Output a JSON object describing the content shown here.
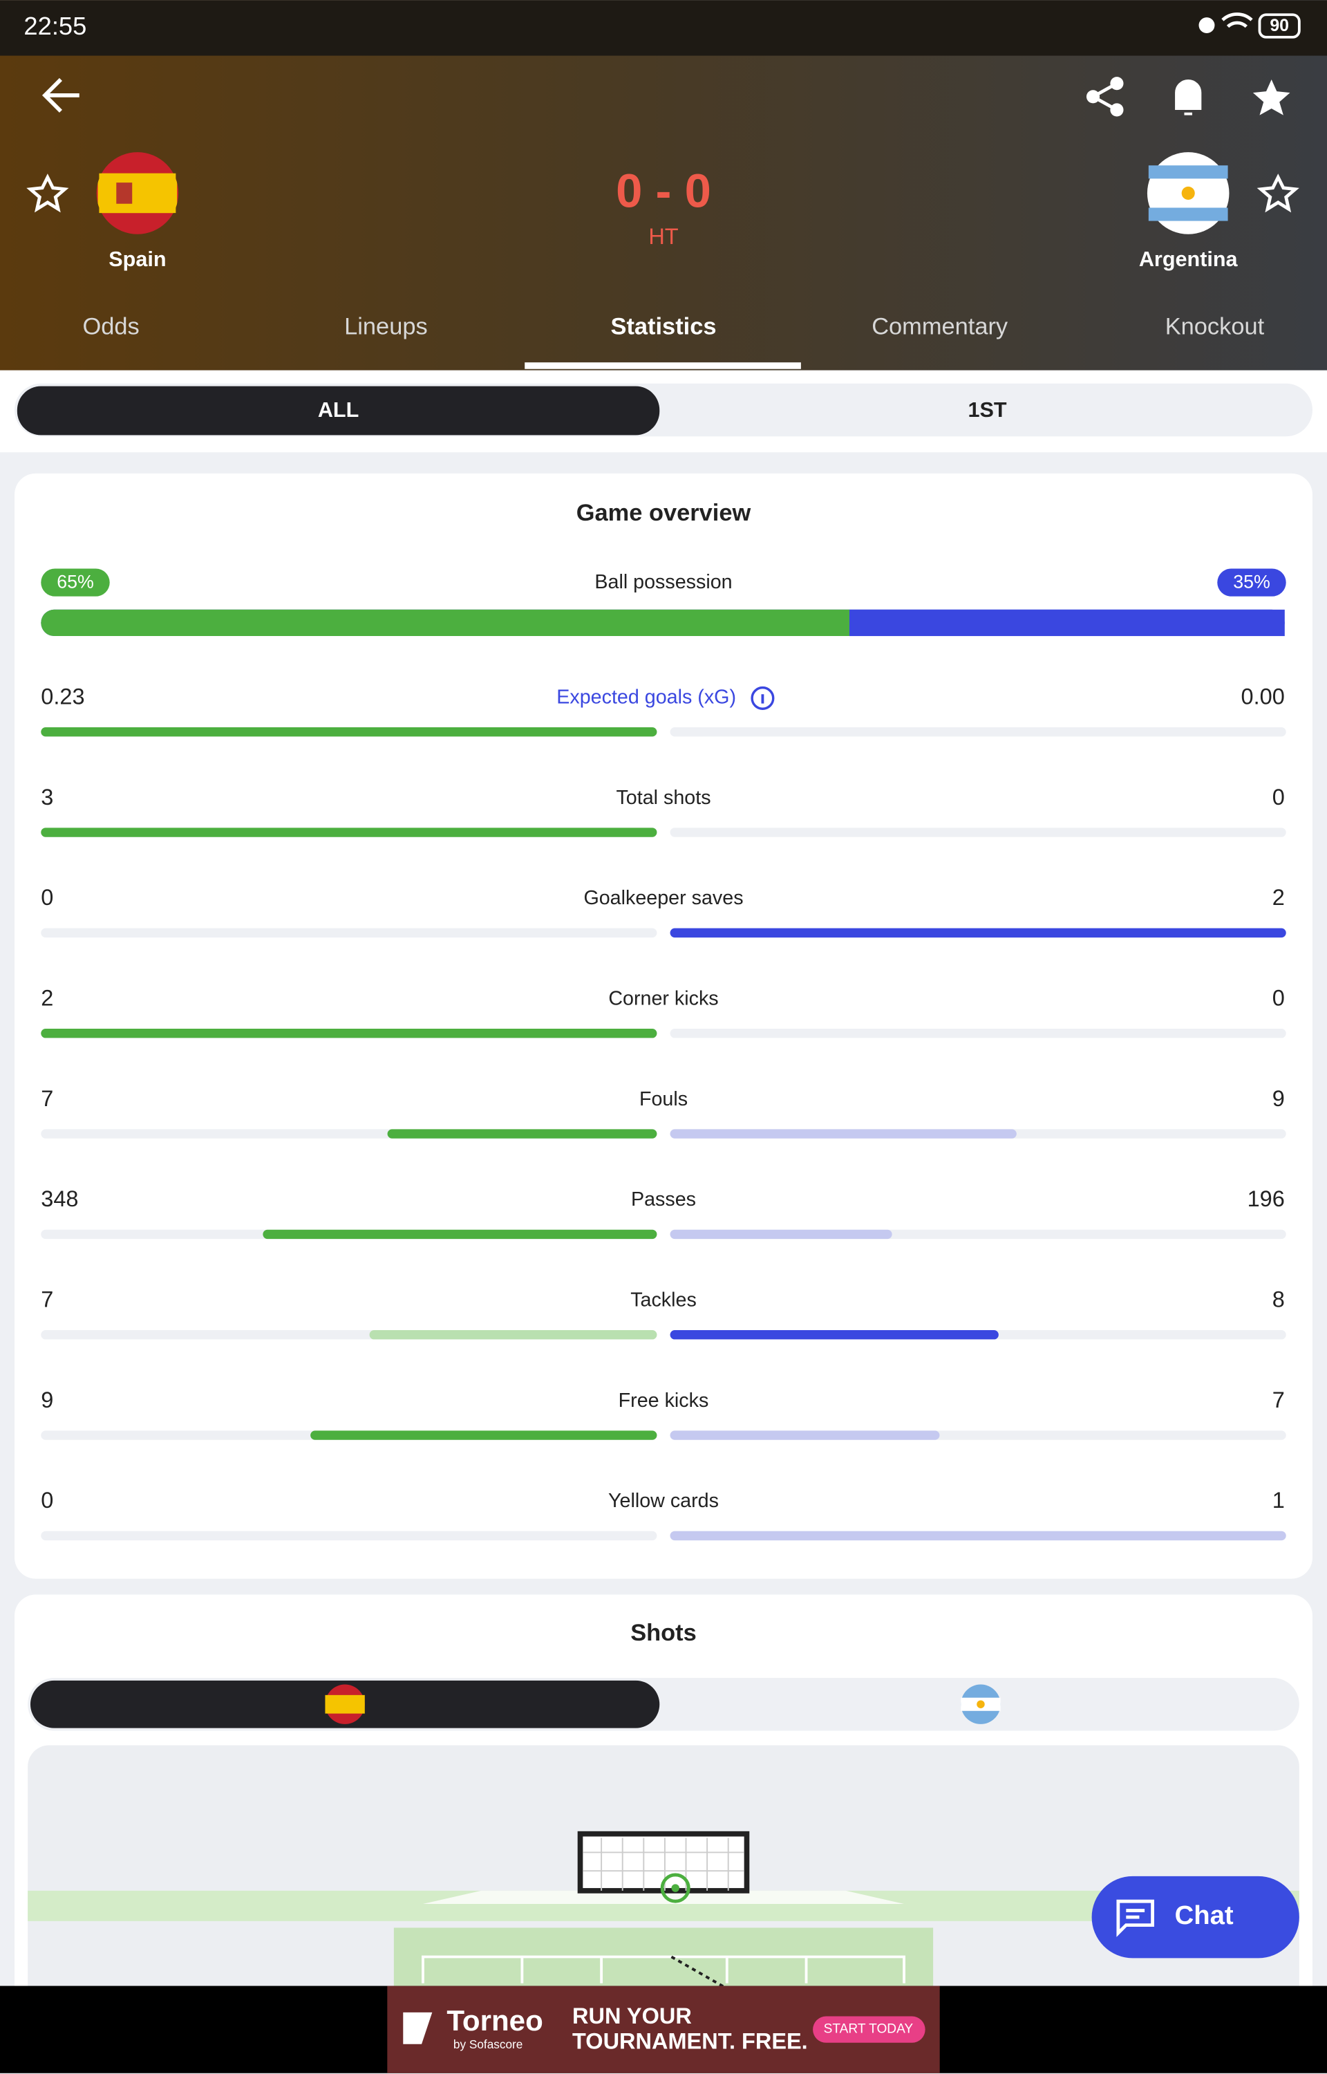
{
  "status_bar": {
    "time": "22:55",
    "battery": "90"
  },
  "match": {
    "home": "Spain",
    "away": "Argentina",
    "score": "0 - 0",
    "status": "HT"
  },
  "tabs": [
    "Odds",
    "Lineups",
    "Statistics",
    "Commentary",
    "Knockout"
  ],
  "period_filter": [
    "ALL",
    "1ST"
  ],
  "overview": {
    "title": "Game overview",
    "possession": {
      "name": "Ball possession",
      "values": [
        65,
        35
      ],
      "value_labels": [
        "65%",
        "35%"
      ],
      "colors": [
        "#4caf3f",
        "#3a47e0"
      ]
    },
    "stats": [
      {
        "name": "Expected goals (xG)",
        "values": [
          0.23,
          0
        ],
        "value_labels": [
          "0.23",
          "0.00"
        ],
        "colors": [
          "#4caf3f",
          "#3a47e0"
        ]
      },
      {
        "name": "Total shots",
        "values": [
          3,
          0
        ],
        "colors": [
          "#4caf3f",
          "#3a47e0"
        ]
      },
      {
        "name": "Goalkeeper saves",
        "values": [
          0,
          2
        ],
        "colors": [
          "#4caf3f",
          "#3a47e0"
        ]
      },
      {
        "name": "Corner kicks",
        "values": [
          2,
          0
        ],
        "colors": [
          "#4caf3f",
          "#3a47e0"
        ]
      },
      {
        "name": "Fouls",
        "values": [
          7,
          9
        ],
        "colors": [
          "#4caf3f",
          "#c5c9f0"
        ]
      },
      {
        "name": "Passes",
        "values": [
          348,
          196
        ],
        "colors": [
          "#4caf3f",
          "#c5c9f0"
        ]
      },
      {
        "name": "Tackles",
        "values": [
          7,
          8
        ],
        "colors": [
          "#b9e0b0",
          "#3a47e0"
        ]
      },
      {
        "name": "Free kicks",
        "values": [
          9,
          7
        ],
        "colors": [
          "#4caf3f",
          "#c5c9f0"
        ]
      },
      {
        "name": "Yellow cards",
        "values": [
          0,
          1
        ],
        "colors": [
          "#b9e0b0",
          "#c5c9f0"
        ]
      }
    ]
  },
  "shots": {
    "title": "Shots"
  },
  "chat": "Chat",
  "ad": {
    "brand": "Torneo",
    "byline": "by Sofascore",
    "headline": [
      "RUN YOUR",
      "TOURNAMENT. FREE."
    ],
    "cta": "START TODAY"
  }
}
